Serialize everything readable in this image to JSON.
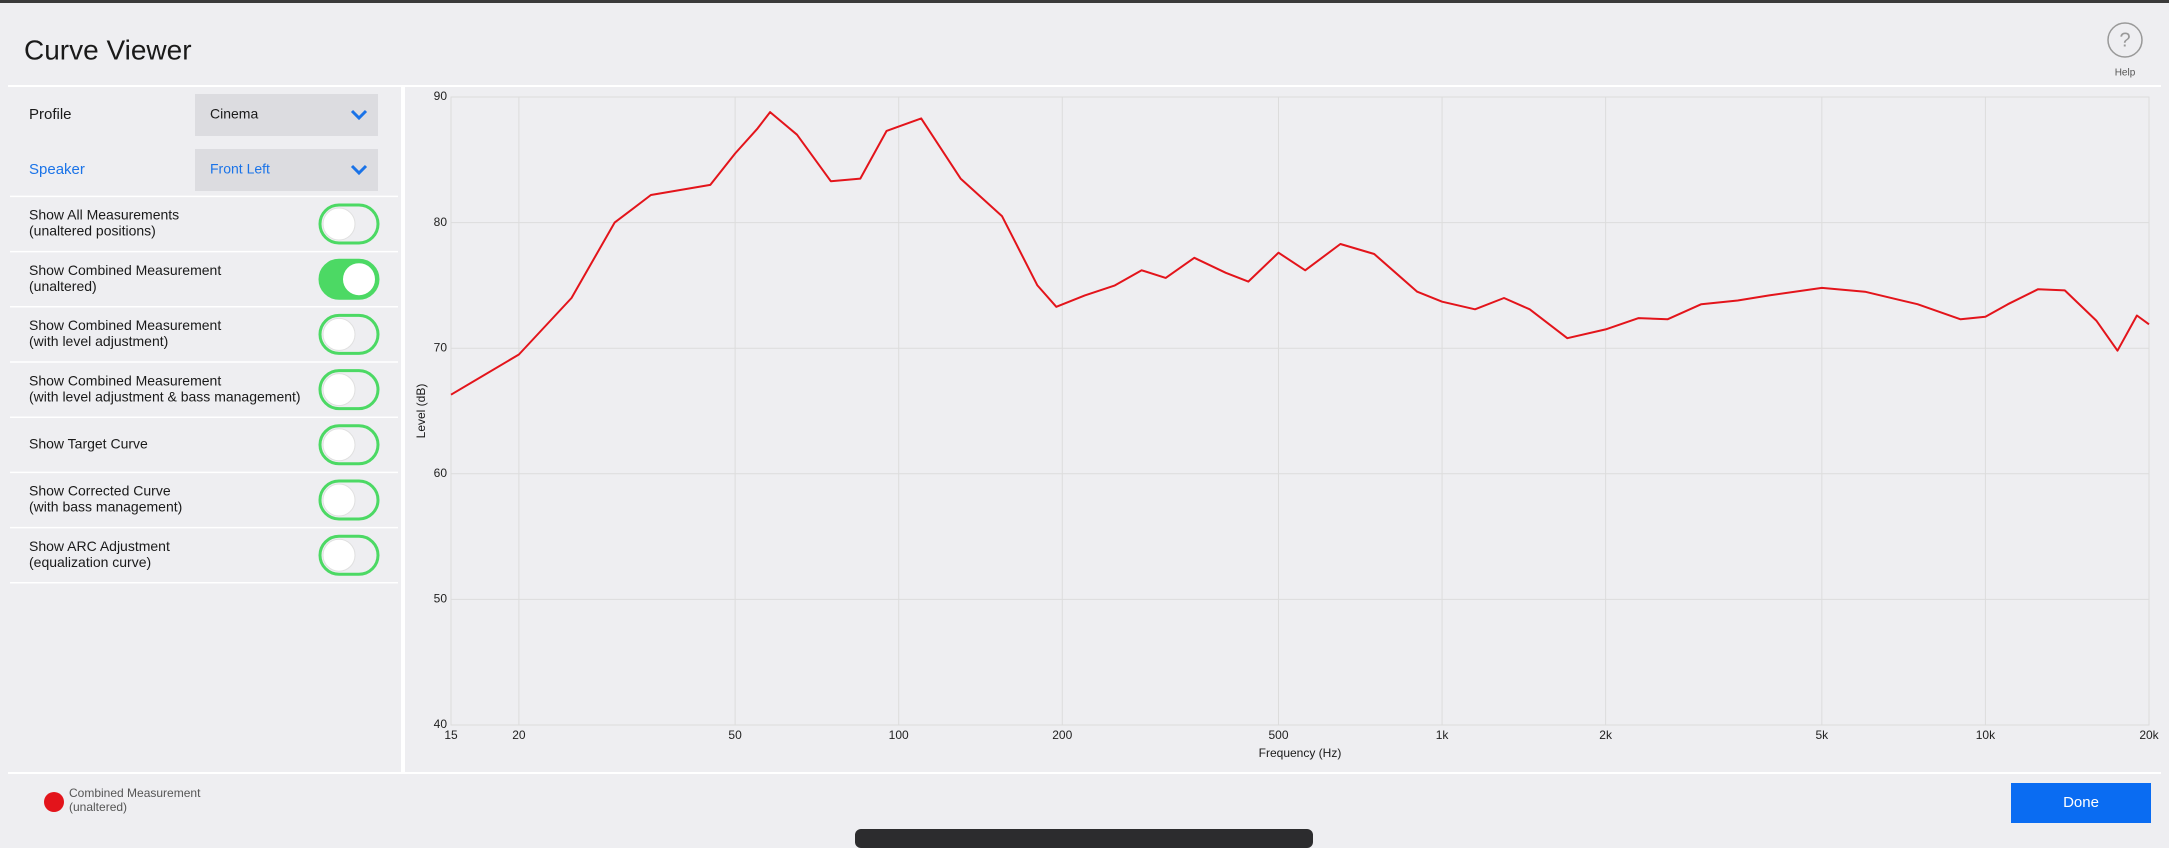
{
  "header": {
    "title": "Curve Viewer",
    "help": "Help"
  },
  "selectors": [
    {
      "label": "Profile",
      "value": "Cinema"
    },
    {
      "label": "Speaker",
      "value": "Front Left"
    }
  ],
  "toggles": [
    {
      "lines": [
        "Show All Measurements",
        "(unaltered  positions)"
      ],
      "on": false
    },
    {
      "lines": [
        "Show Combined Measurement",
        "(unaltered)"
      ],
      "on": true
    },
    {
      "lines": [
        "Show Combined Measurement",
        "(with level adjustment)"
      ],
      "on": false
    },
    {
      "lines": [
        "Show Combined Measurement",
        "(with level adjustment & bass management)"
      ],
      "on": false
    },
    {
      "lines": [
        "Show Target Curve"
      ],
      "on": false
    },
    {
      "lines": [
        "Show Corrected Curve",
        "(with bass management)"
      ],
      "on": false
    },
    {
      "lines": [
        "Show ARC Adjustment",
        "(equalization curve)"
      ],
      "on": false
    }
  ],
  "chart_data": {
    "type": "line",
    "x_label": "Frequency (Hz)",
    "y_label": "Level (dB)",
    "xscale": "log",
    "grid": true,
    "xlim": [
      15,
      20000
    ],
    "ylim": [
      40,
      90
    ],
    "xticks": [
      15,
      20,
      50,
      100,
      200,
      500,
      {
        "value": 1000,
        "label": "1k"
      },
      {
        "value": 2000,
        "label": "2k"
      },
      {
        "value": 5000,
        "label": "5k"
      },
      {
        "value": 10000,
        "label": "10k"
      },
      {
        "value": 20000,
        "label": "20k"
      }
    ],
    "yticks": [
      40,
      50,
      60,
      70,
      80,
      90
    ],
    "x": [
      15,
      20,
      25,
      30,
      35,
      45,
      50,
      55,
      58,
      65,
      75,
      85,
      95,
      110,
      130,
      155,
      180,
      195,
      220,
      250,
      280,
      310,
      350,
      400,
      440,
      500,
      560,
      650,
      750,
      900,
      1000,
      1150,
      1300,
      1450,
      1700,
      2000,
      2300,
      2600,
      3000,
      3500,
      4000,
      5000,
      6000,
      7500,
      9000,
      10000,
      11000,
      12500,
      14000,
      16000,
      17500,
      19000,
      20000
    ],
    "series": [
      {
        "name": "Combined Measurement (unaltered)",
        "color": "#e3141b",
        "values": [
          66.3,
          69.5,
          74,
          80,
          82.2,
          83,
          85.5,
          87.5,
          88.8,
          87,
          83.3,
          83.5,
          87.3,
          88.3,
          83.5,
          80.5,
          75,
          73.3,
          74.2,
          75,
          76.2,
          75.6,
          77.2,
          76,
          75.3,
          77.6,
          76.2,
          78.3,
          77.5,
          74.5,
          73.7,
          73.1,
          74,
          73.1,
          70.8,
          71.5,
          72.4,
          72.3,
          73.5,
          73.8,
          74.2,
          74.8,
          74.5,
          73.5,
          72.3,
          72.5,
          73.5,
          74.7,
          74.6,
          72.2,
          69.8,
          72.6,
          71.9
        ]
      }
    ]
  },
  "done": "Done"
}
